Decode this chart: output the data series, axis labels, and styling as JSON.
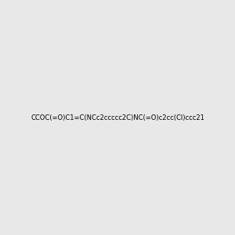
{
  "smiles": "CCOC(=O)C1=C(NCc2ccccc2C)NC(=O)c2cc(Cl)ccc21",
  "title": "",
  "bg_color": "#e8e8e8",
  "bond_color": "#2e8b57",
  "N_color": "#0000cd",
  "O_color": "#ff0000",
  "Cl_color": "#2e8b57",
  "C_color": "#2e8b57",
  "H_color": "#0000cd",
  "img_size": [
    300,
    300
  ],
  "dpi": 100
}
